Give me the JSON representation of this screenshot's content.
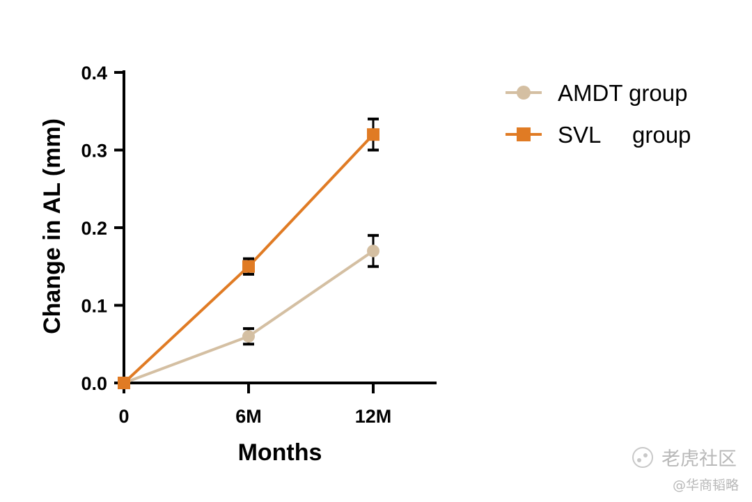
{
  "chart_data": {
    "type": "line",
    "title": "",
    "xlabel": "Months",
    "ylabel": "Change in AL (mm)",
    "categories": [
      "0",
      "6M",
      "12M"
    ],
    "ylim": [
      0,
      0.4
    ],
    "yticks": [
      "0.0",
      "0.1",
      "0.2",
      "0.3",
      "0.4"
    ],
    "grid": false,
    "legend_position": "right",
    "series": [
      {
        "name": "AMDT group",
        "marker": "circle",
        "color": "#d4bfa2",
        "values": [
          0,
          0.06,
          0.17
        ],
        "error": [
          0,
          0.01,
          0.02
        ]
      },
      {
        "name": "SVL     group",
        "marker": "square",
        "color": "#e07b24",
        "values": [
          0,
          0.15,
          0.32
        ],
        "error": [
          0,
          0.01,
          0.02
        ]
      }
    ]
  },
  "watermark": {
    "line1": "老虎社区",
    "line2": "@华商韬略",
    "icon": "tiger-paw-icon"
  }
}
